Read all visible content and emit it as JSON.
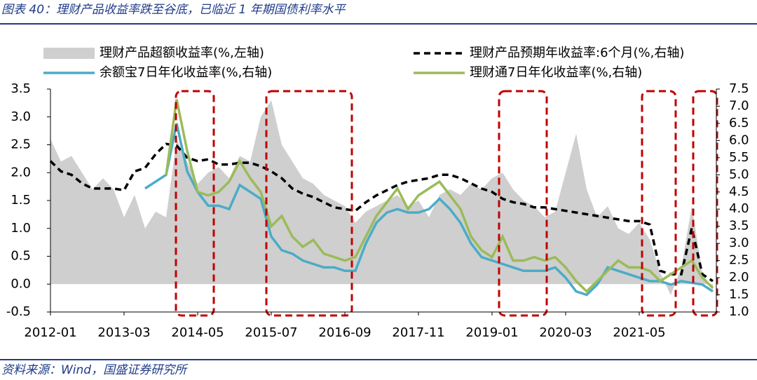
{
  "title": "图表 40：理财产品收益率跌至谷底，已临近 1 年期国债利率水平",
  "source": "资料来源：Wind，国盛证券研究所",
  "chart_data": {
    "type": "line",
    "categories": [
      "2012-01",
      null,
      null,
      null,
      null,
      null,
      null,
      "2013-03",
      null,
      null,
      null,
      null,
      null,
      null,
      "2014-05",
      null,
      null,
      null,
      null,
      null,
      null,
      "2015-07",
      null,
      null,
      null,
      null,
      null,
      null,
      "2016-09",
      null,
      null,
      null,
      null,
      null,
      null,
      "2017-11",
      null,
      null,
      null,
      null,
      null,
      null,
      "2019-01",
      null,
      null,
      null,
      null,
      null,
      null,
      "2020-03",
      null,
      null,
      null,
      null,
      null,
      null,
      "2021-05",
      null,
      null,
      null,
      null,
      null,
      null,
      null
    ],
    "ylim": [
      -0.5,
      3.5
    ],
    "yticks": [
      -0.5,
      {
        "value": 0,
        "label": "0.0"
      },
      0.5,
      {
        "value": 1,
        "label": "1.0"
      },
      1.5,
      {
        "value": 2,
        "label": "2.0"
      },
      2.5,
      {
        "value": 3,
        "label": "3.0"
      },
      3.5
    ],
    "y2lim": [
      1,
      7.5
    ],
    "y2ticks": [
      {
        "value": 1,
        "label": "1.0"
      },
      1.5,
      {
        "value": 2,
        "label": "2.0"
      },
      2.5,
      {
        "value": 3,
        "label": "3.0"
      },
      3.5,
      {
        "value": 4,
        "label": "4.0"
      },
      4.5,
      {
        "value": 5,
        "label": "5.0"
      },
      5.5,
      {
        "value": 6,
        "label": "6.0"
      },
      6.5,
      {
        "value": 7,
        "label": "7.0"
      },
      7.5
    ],
    "series": [
      {
        "name": "理财产品超额收益率(%,左轴)",
        "kind": "area",
        "color": "#cfcfcf",
        "values": [
          2.6,
          2.2,
          2.3,
          2.0,
          1.7,
          1.9,
          1.7,
          1.2,
          1.6,
          1.0,
          1.3,
          1.2,
          2.6,
          2.2,
          1.8,
          2.0,
          2.1,
          1.9,
          2.3,
          2.2,
          3.0,
          3.3,
          2.5,
          2.2,
          1.9,
          1.8,
          1.6,
          1.5,
          1.4,
          1.1,
          1.3,
          1.4,
          1.5,
          1.6,
          1.4,
          1.5,
          1.2,
          1.6,
          1.7,
          1.6,
          1.8,
          1.7,
          1.9,
          2.0,
          1.7,
          1.5,
          1.4,
          1.2,
          1.3,
          2.0,
          2.7,
          1.7,
          1.2,
          1.4,
          1.0,
          0.9,
          1.1,
          0.8,
          0.2,
          -0.2,
          0.3,
          1.4,
          0.2,
          -0.1
        ]
      },
      {
        "name": "理财产品预期年收益率:6个月(%,右轴)",
        "kind": "dashed",
        "axis": "y2",
        "color": "#000000",
        "values": [
          5.4,
          5.1,
          5.0,
          4.75,
          4.6,
          4.6,
          4.6,
          4.55,
          5.1,
          5.2,
          5.6,
          5.9,
          5.85,
          5.5,
          5.4,
          5.45,
          5.3,
          5.3,
          5.35,
          5.35,
          5.25,
          5.1,
          4.9,
          4.6,
          4.45,
          4.35,
          4.2,
          4.05,
          4.0,
          3.95,
          4.2,
          4.4,
          4.55,
          4.7,
          4.8,
          4.85,
          4.9,
          5.0,
          5.0,
          4.9,
          4.75,
          4.6,
          4.5,
          4.3,
          4.2,
          4.15,
          4.05,
          4.05,
          4.0,
          3.95,
          3.9,
          3.85,
          3.8,
          3.75,
          3.7,
          3.65,
          3.65,
          3.55,
          2.2,
          2.1,
          2.1,
          3.45,
          2.1,
          1.9
        ]
      },
      {
        "name": "余额宝7日年化收益率(%,右轴)",
        "kind": "line",
        "axis": "y2",
        "color": "#4bacc6",
        "values": [
          null,
          null,
          null,
          null,
          null,
          null,
          null,
          null,
          null,
          4.6,
          4.8,
          5.0,
          6.5,
          5.1,
          4.5,
          4.1,
          4.1,
          4.0,
          4.7,
          4.5,
          4.3,
          3.2,
          2.8,
          2.7,
          2.5,
          2.4,
          2.3,
          2.3,
          2.2,
          2.2,
          3.0,
          3.6,
          3.9,
          4.0,
          3.9,
          3.9,
          4.0,
          4.3,
          4.0,
          3.6,
          3.0,
          2.6,
          2.5,
          2.4,
          2.3,
          2.2,
          2.2,
          2.2,
          2.3,
          2.0,
          1.6,
          1.5,
          1.8,
          2.3,
          2.2,
          2.1,
          2.0,
          1.9,
          1.9,
          1.8,
          1.9,
          1.85,
          1.8,
          1.6
        ]
      },
      {
        "name": "理财通7日年化收益率(%,右轴)",
        "kind": "line",
        "axis": "y2",
        "color": "#9bbb59",
        "values": [
          null,
          null,
          null,
          null,
          null,
          null,
          null,
          null,
          null,
          null,
          null,
          5.0,
          7.2,
          5.7,
          4.5,
          4.4,
          4.5,
          4.8,
          5.4,
          4.9,
          4.5,
          3.5,
          3.8,
          3.2,
          2.9,
          3.1,
          2.7,
          2.6,
          2.5,
          2.6,
          3.2,
          3.8,
          4.2,
          4.6,
          4.0,
          4.4,
          4.6,
          4.8,
          4.4,
          4.0,
          3.2,
          2.8,
          2.6,
          3.2,
          2.5,
          2.5,
          2.6,
          2.5,
          2.6,
          2.3,
          1.9,
          1.6,
          1.9,
          2.2,
          2.5,
          2.3,
          2.3,
          2.2,
          1.9,
          2.1,
          2.3,
          2.5,
          2.0,
          1.7
        ]
      }
    ]
  }
}
